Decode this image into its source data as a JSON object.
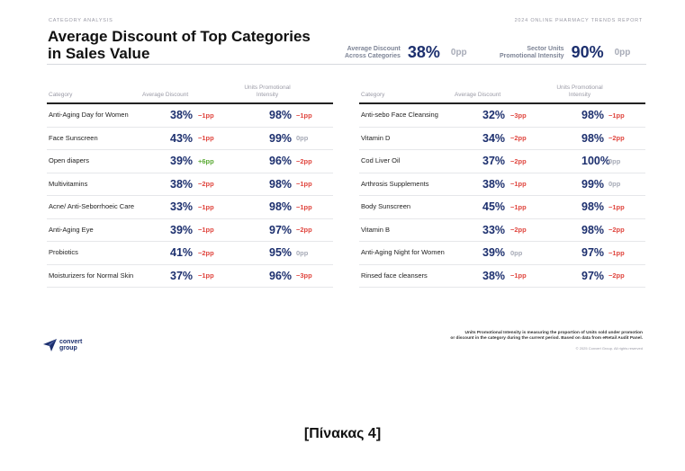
{
  "header": {
    "kicker_left": "CATEGORY ANALYSIS",
    "kicker_right": "2024 ONLINE PHARMACY TRENDS REPORT",
    "title_line1": "Average Discount of Top Categories",
    "title_line2": "in Sales Value"
  },
  "kpis": [
    {
      "label_line1": "Average Discount",
      "label_line2": "Across Categories",
      "value": "38%",
      "delta": "0pp"
    },
    {
      "label_line1": "Sector Units",
      "label_line2": "Promotional Intensity",
      "value": "90%",
      "delta": "0pp"
    }
  ],
  "columns": {
    "category": "Category",
    "avg_discount": "Average Discount",
    "units_line1": "Units Promotional",
    "units_line2": "Intensity"
  },
  "tables": [
    {
      "rows": [
        {
          "category": "Anti-Aging Day for Women",
          "discount": "38%",
          "discount_delta": "−1pp",
          "discount_sign": "neg",
          "units": "98%",
          "units_delta": "−1pp",
          "units_sign": "neg"
        },
        {
          "category": "Face Sunscreen",
          "discount": "43%",
          "discount_delta": "−1pp",
          "discount_sign": "neg",
          "units": "99%",
          "units_delta": "0pp",
          "units_sign": "zero"
        },
        {
          "category": "Open diapers",
          "discount": "39%",
          "discount_delta": "+6pp",
          "discount_sign": "pos",
          "units": "96%",
          "units_delta": "−2pp",
          "units_sign": "neg"
        },
        {
          "category": "Multivitamins",
          "discount": "38%",
          "discount_delta": "−2pp",
          "discount_sign": "neg",
          "units": "98%",
          "units_delta": "−1pp",
          "units_sign": "neg"
        },
        {
          "category": "Acne/ Anti-Seborrhoeic Care",
          "discount": "33%",
          "discount_delta": "−1pp",
          "discount_sign": "neg",
          "units": "98%",
          "units_delta": "−1pp",
          "units_sign": "neg"
        },
        {
          "category": "Anti-Aging Eye",
          "discount": "39%",
          "discount_delta": "−1pp",
          "discount_sign": "neg",
          "units": "97%",
          "units_delta": "−2pp",
          "units_sign": "neg"
        },
        {
          "category": "Probiotics",
          "discount": "41%",
          "discount_delta": "−2pp",
          "discount_sign": "neg",
          "units": "95%",
          "units_delta": "0pp",
          "units_sign": "zero"
        },
        {
          "category": "Moisturizers for Normal Skin",
          "discount": "37%",
          "discount_delta": "−1pp",
          "discount_sign": "neg",
          "units": "96%",
          "units_delta": "−3pp",
          "units_sign": "neg"
        }
      ]
    },
    {
      "rows": [
        {
          "category": "Anti-sebo Face Cleansing",
          "discount": "32%",
          "discount_delta": "−3pp",
          "discount_sign": "neg",
          "units": "98%",
          "units_delta": "−1pp",
          "units_sign": "neg"
        },
        {
          "category": "Vitamin D",
          "discount": "34%",
          "discount_delta": "−2pp",
          "discount_sign": "neg",
          "units": "98%",
          "units_delta": "−2pp",
          "units_sign": "neg"
        },
        {
          "category": "Cod Liver Oil",
          "discount": "37%",
          "discount_delta": "−2pp",
          "discount_sign": "neg",
          "units": "100%",
          "units_delta": "0pp",
          "units_sign": "zero"
        },
        {
          "category": "Arthrosis Supplements",
          "discount": "38%",
          "discount_delta": "−1pp",
          "discount_sign": "neg",
          "units": "99%",
          "units_delta": "0pp",
          "units_sign": "zero"
        },
        {
          "category": "Body Sunscreen",
          "discount": "45%",
          "discount_delta": "−1pp",
          "discount_sign": "neg",
          "units": "98%",
          "units_delta": "−1pp",
          "units_sign": "neg"
        },
        {
          "category": "Vitamin B",
          "discount": "33%",
          "discount_delta": "−2pp",
          "discount_sign": "neg",
          "units": "98%",
          "units_delta": "−2pp",
          "units_sign": "neg"
        },
        {
          "category": "Anti-Aging Night for Women",
          "discount": "39%",
          "discount_delta": "0pp",
          "discount_sign": "zero",
          "units": "97%",
          "units_delta": "−1pp",
          "units_sign": "neg"
        },
        {
          "category": "Rinsed face cleansers",
          "discount": "38%",
          "discount_delta": "−1pp",
          "discount_sign": "neg",
          "units": "97%",
          "units_delta": "−2pp",
          "units_sign": "neg"
        }
      ]
    }
  ],
  "footer": {
    "note_line1": "Units Promotional Intensity is measuring the proportion of Units sold under promotion",
    "note_line2": "or discount in the category during the current period. Based on data from eRetail Audit Panel.",
    "copyright": "© 2025 Convert Group. All rights reserved",
    "logo_line1": "convert",
    "logo_line2": "group",
    "logo_icon": "paper-plane-icon"
  },
  "caption": "[Πίνακας 4]",
  "colors": {
    "navy": "#1c2f6e",
    "negative": "#e0463f",
    "positive": "#5aa933",
    "neutral": "#a7abb7"
  }
}
